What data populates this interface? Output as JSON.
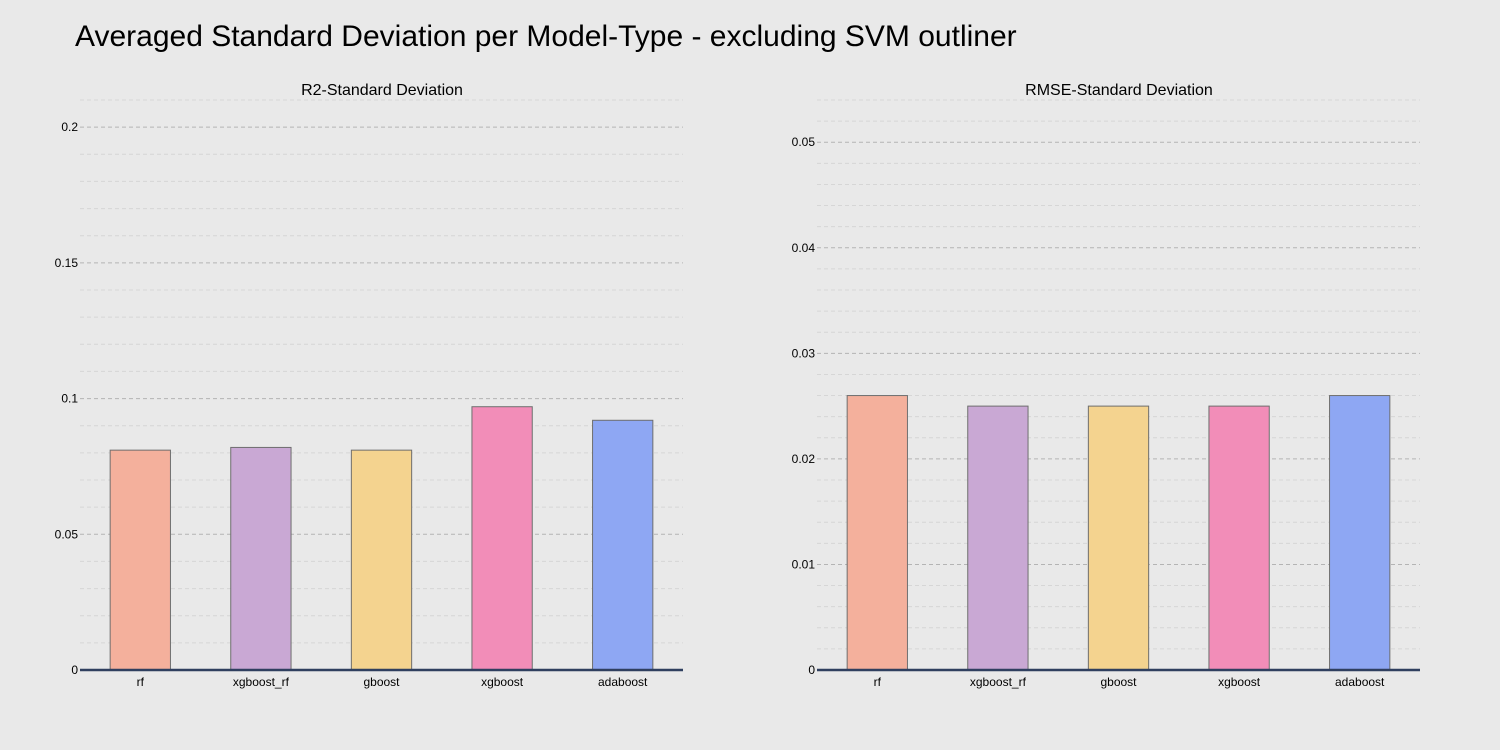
{
  "title": "Averaged Standard Deviation per Model-Type - excluding SVM outliner",
  "colors": {
    "background": "#e9e9e9",
    "bar_fills": [
      "#f4b09c",
      "#c9a8d4",
      "#f4d38f",
      "#f28db8",
      "#8ea7f3"
    ],
    "axis": "#2f3f5f",
    "grid_major": "#b4b4b4",
    "grid_minor": "#d6d6d6"
  },
  "chart_data": [
    {
      "type": "bar",
      "title": "R2-Standard Deviation",
      "categories": [
        "rf",
        "xgboost_rf",
        "gboost",
        "xgboost",
        "adaboost"
      ],
      "values": [
        0.081,
        0.082,
        0.081,
        0.097,
        0.092
      ],
      "ylim": [
        0,
        0.21
      ],
      "yticks": [
        0,
        0.05,
        0.1,
        0.15,
        0.2
      ],
      "ytick_labels": [
        "0",
        "0.05",
        "0.1",
        "0.15",
        "0.2"
      ],
      "minor_step": 0.01,
      "grid": true,
      "xlabel": "",
      "ylabel": ""
    },
    {
      "type": "bar",
      "title": "RMSE-Standard Deviation",
      "categories": [
        "rf",
        "xgboost_rf",
        "gboost",
        "xgboost",
        "adaboost"
      ],
      "values": [
        0.026,
        0.025,
        0.025,
        0.025,
        0.026
      ],
      "ylim": [
        0,
        0.054
      ],
      "yticks": [
        0,
        0.01,
        0.02,
        0.03,
        0.04,
        0.05
      ],
      "ytick_labels": [
        "0",
        "0.01",
        "0.02",
        "0.03",
        "0.04",
        "0.05"
      ],
      "minor_step": 0.002,
      "grid": true,
      "xlabel": "",
      "ylabel": ""
    }
  ]
}
